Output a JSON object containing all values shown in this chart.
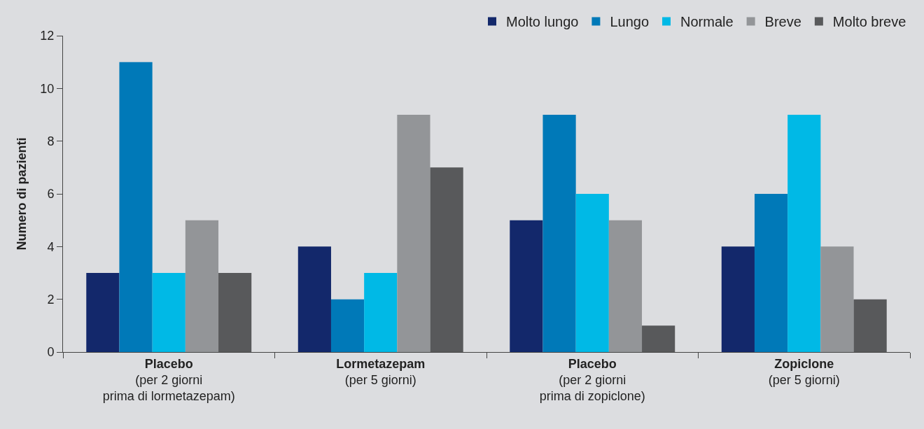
{
  "chart_data": {
    "type": "bar",
    "ylabel": "Numero di pazienti",
    "categories": [
      "Placebo\n(per 2 giorni\nprima di lormetazepam)",
      "Lormetazepam\n(per 5 giorni)",
      "Placebo\n(per 2 giorni\nprima di zopiclone)",
      "Zopiclone\n(per 5 giorni)"
    ],
    "series": [
      {
        "name": "Molto lungo",
        "color": "#13286b",
        "values": [
          3,
          4,
          5,
          4
        ]
      },
      {
        "name": "Lungo",
        "color": "#0079b8",
        "values": [
          11,
          2,
          9,
          6
        ]
      },
      {
        "name": "Normale",
        "color": "#00b9e6",
        "values": [
          3,
          3,
          6,
          9
        ]
      },
      {
        "name": "Breve",
        "color": "#939598",
        "values": [
          5,
          9,
          5,
          4
        ]
      },
      {
        "name": "Molto breve",
        "color": "#58595b",
        "values": [
          3,
          7,
          1,
          2
        ]
      }
    ],
    "ylim": [
      0,
      12
    ],
    "yticks": [
      0,
      2,
      4,
      6,
      8,
      10,
      12
    ],
    "grid": false,
    "legend": "top right"
  }
}
